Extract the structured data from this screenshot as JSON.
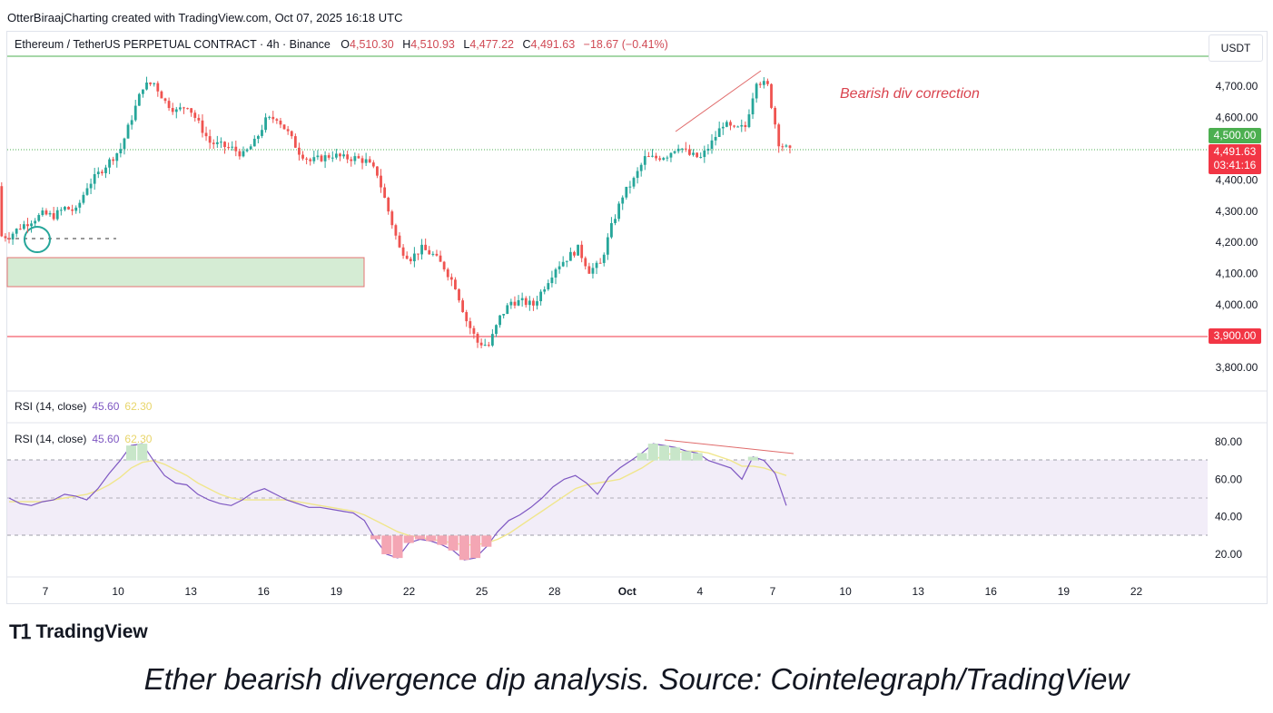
{
  "credit": "OtterBiraajCharting created with TradingView.com, Oct 07, 2025 16:18 UTC",
  "symbol_line": {
    "symbol": "Ethereum / TetherUS PERPETUAL CONTRACT · 4h · Binance",
    "open_label": "O",
    "open": "4,510.30",
    "high_label": "H",
    "high": "4,510.93",
    "low_label": "L",
    "low": "4,477.22",
    "close_label": "C",
    "close": "4,491.63",
    "change": "−18.67 (−0.41%)"
  },
  "currency": "USDT",
  "annotation": "Bearish div correction",
  "price_tags": {
    "green_level": "4,500.00",
    "last_price": "4,491.63",
    "countdown": "03:41:16",
    "support_level": "3,900.00"
  },
  "rsi_legend_1": {
    "label": "RSI (14, close)",
    "rsi": "45.60",
    "ma": "62.30"
  },
  "rsi_legend_2": {
    "label": "RSI (14, close)",
    "rsi": "45.60",
    "ma": "62.30"
  },
  "brand": "TradingView",
  "caption": "Ether bearish divergence dip analysis. Source: Cointelegraph/TradingView",
  "colors": {
    "up": "#26a69a",
    "down": "#ef5350",
    "rsi": "#7e57c2",
    "rsi_ma": "#f0e68c",
    "green_line": "#4caf50",
    "red_line": "#f23645"
  },
  "chart_data": [
    {
      "type": "candlestick",
      "price_axis": {
        "ticks": [
          "4,700.00",
          "4,600.00",
          "4,400.00",
          "4,300.00",
          "4,200.00",
          "4,100.00",
          "4,000.00",
          "3,800.00"
        ],
        "range": [
          3750,
          4800
        ]
      },
      "time_axis": {
        "ticks": [
          "7",
          "10",
          "13",
          "16",
          "19",
          "22",
          "25",
          "28",
          "Oct",
          "4",
          "7",
          "10",
          "13",
          "16",
          "19",
          "22"
        ]
      },
      "horizontal_levels": {
        "resistance": 4800,
        "current": 4500,
        "support": 3900
      },
      "demand_zone": [
        4050,
        4145
      ],
      "close_path": [
        4220,
        4250,
        4270,
        4290,
        4285,
        4310,
        4300,
        4380,
        4420,
        4460,
        4500,
        4600,
        4700,
        4710,
        4650,
        4620,
        4640,
        4580,
        4520,
        4510,
        4500,
        4480,
        4520,
        4590,
        4600,
        4550,
        4490,
        4460,
        4470,
        4480,
        4470,
        4470,
        4460,
        4420,
        4300,
        4180,
        4150,
        4180,
        4160,
        4120,
        4060,
        3950,
        3880,
        3870,
        3960,
        4010,
        4010,
        4000,
        4060,
        4120,
        4150,
        4180,
        4110,
        4130,
        4250,
        4350,
        4400,
        4470,
        4470,
        4480,
        4510,
        4480,
        4470,
        4520,
        4580,
        4560,
        4570,
        4720,
        4700,
        4520,
        4491
      ]
    },
    {
      "type": "line",
      "name": "RSI (14, close)",
      "y_axis": {
        "ticks": [
          "80.00",
          "60.00",
          "40.00",
          "20.00"
        ],
        "range": [
          10,
          88
        ]
      },
      "bands": {
        "upper": 70,
        "middle": 50,
        "lower": 30
      },
      "rsi": [
        50,
        47,
        46,
        48,
        49,
        52,
        51,
        49,
        55,
        63,
        70,
        78,
        79,
        70,
        62,
        58,
        57,
        52,
        49,
        47,
        46,
        49,
        53,
        55,
        52,
        49,
        47,
        45,
        45,
        44,
        43,
        42,
        38,
        28,
        20,
        18,
        26,
        28,
        27,
        25,
        22,
        17,
        18,
        24,
        32,
        38,
        41,
        45,
        50,
        56,
        60,
        62,
        58,
        52,
        61,
        66,
        70,
        74,
        79,
        78,
        77,
        75,
        74,
        70,
        68,
        66,
        60,
        72,
        70,
        63,
        46
      ],
      "rsi_ma": [
        48,
        48,
        48,
        48,
        49,
        50,
        51,
        52,
        54,
        57,
        61,
        66,
        69,
        70,
        68,
        65,
        62,
        58,
        55,
        52,
        50,
        49,
        49,
        49,
        49,
        49,
        48,
        47,
        46,
        45,
        44,
        43,
        41,
        38,
        35,
        32,
        30,
        29,
        28,
        27,
        26,
        25,
        25,
        26,
        28,
        31,
        35,
        39,
        43,
        47,
        51,
        55,
        57,
        58,
        59,
        60,
        63,
        66,
        70,
        73,
        74,
        75,
        75,
        74,
        72,
        70,
        67,
        67,
        66,
        64,
        62
      ]
    }
  ]
}
